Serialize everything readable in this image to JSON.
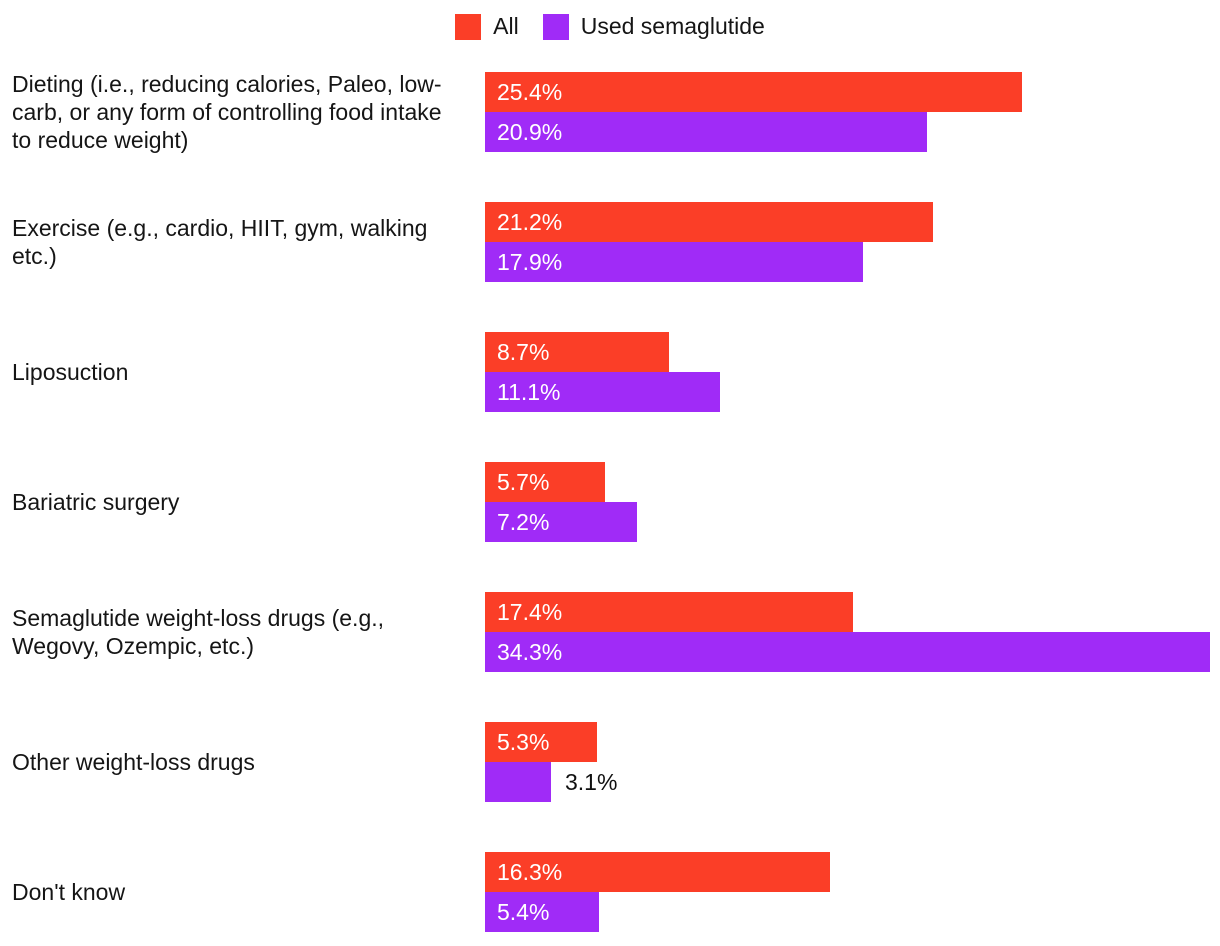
{
  "legend": {
    "position": "top-center"
  },
  "chart_data": {
    "type": "bar",
    "orientation": "horizontal",
    "title": "",
    "xlabel": "",
    "ylabel": "",
    "grid": false,
    "legend_position": "top",
    "xlim": [
      0,
      34.3
    ],
    "value_suffix": "%",
    "categories": [
      "Dieting (i.e., reducing calories, Paleo, low-carb, or any form of controlling food intake to reduce weight)",
      "Exercise (e.g., cardio, HIIT, gym, walking etc.)",
      "Liposuction",
      "Bariatric surgery",
      "Semaglutide weight-loss drugs (e.g., Wegovy, Ozempic, etc.)",
      "Other weight-loss drugs",
      "Don't know"
    ],
    "series": [
      {
        "name": "All",
        "color": "#FB3E27",
        "values": [
          25.4,
          21.2,
          8.7,
          5.7,
          17.4,
          5.3,
          16.3
        ],
        "labels": [
          "25.4%",
          "21.2%",
          "8.7%",
          "5.7%",
          "17.4%",
          "5.3%",
          "16.3%"
        ]
      },
      {
        "name": "Used semaglutide",
        "color": "#A02BF7",
        "values": [
          20.9,
          17.9,
          11.1,
          7.2,
          34.3,
          3.1,
          5.4
        ],
        "labels": [
          "20.9%",
          "17.9%",
          "11.1%",
          "7.2%",
          "34.3%",
          "3.1%",
          "5.4%"
        ]
      }
    ],
    "bar_label_color_inside": "#ffffff",
    "bar_label_color_outside": "#111111"
  }
}
